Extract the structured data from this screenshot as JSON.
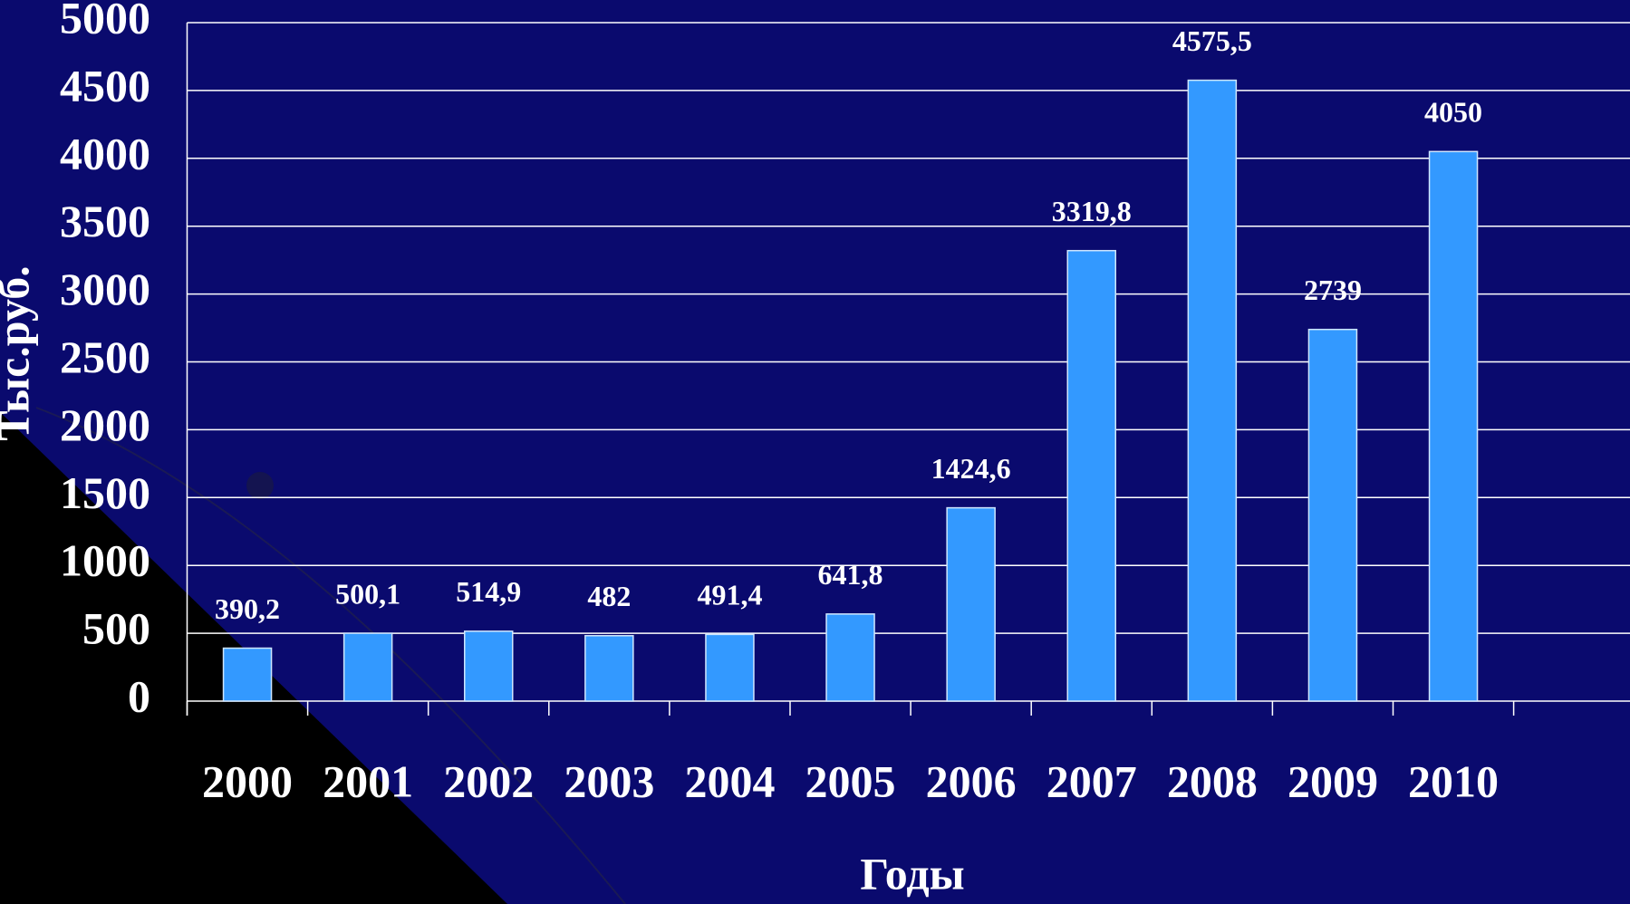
{
  "chart_data": {
    "type": "bar",
    "y_label": "Тыс.руб.",
    "x_label": "Годы",
    "categories": [
      "2000",
      "2001",
      "2002",
      "2003",
      "2004",
      "2005",
      "2006",
      "2007",
      "2008",
      "2009",
      "2010"
    ],
    "values": [
      390.2,
      500.1,
      514.9,
      482,
      491.4,
      641.8,
      1424.6,
      3319.8,
      4575.5,
      2739,
      4050
    ],
    "value_labels": [
      "390,2",
      "500,1",
      "514,9",
      "482",
      "491,4",
      "641,8",
      "1424,6",
      "3319,8",
      "4575,5",
      "2739",
      "4050"
    ],
    "color": "#3399ff",
    "ylim": [
      0,
      5000
    ],
    "yticks": [
      0,
      500,
      1000,
      1500,
      2000,
      2500,
      3000,
      3500,
      4000,
      4500,
      5000
    ],
    "grid": true
  }
}
